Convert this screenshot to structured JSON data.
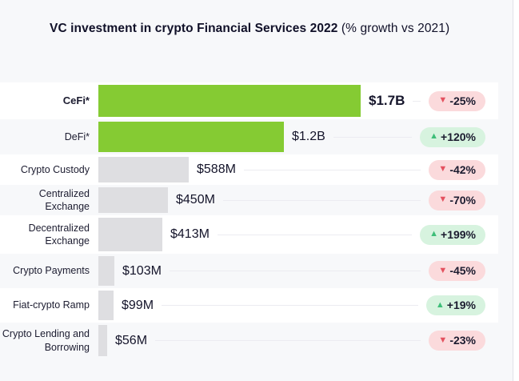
{
  "title": {
    "main": "VC investment in crypto Financial Services 2022",
    "suffix": "(% growth vs 2021)"
  },
  "colors": {
    "page_background": "#f7f8fa",
    "row_alt_background": "#ffffff",
    "bar_green": "#85cb33",
    "bar_gray": "#dedee1",
    "badge_negative_bg": "#fbdadc",
    "badge_positive_bg": "#d7f3df",
    "triangle_negative": "#e4515f",
    "triangle_positive": "#3dbe78",
    "text_dark": "#14142a"
  },
  "chart_data": {
    "type": "bar",
    "orientation": "horizontal",
    "title": "VC investment in crypto Financial Services 2022",
    "subtitle": "(% growth vs 2021)",
    "grid": false,
    "legend": false,
    "categories": [
      "CeFi*",
      "DeFi*",
      "Crypto Custody",
      "Centralized Exchange",
      "Decentralized Exchange",
      "Crypto Payments",
      "Fiat-crypto Ramp",
      "Crypto Lending and Borrowing"
    ],
    "values_usd_millions": [
      1700,
      1200,
      588,
      450,
      413,
      103,
      99,
      56
    ],
    "value_labels": [
      "$1.7B",
      "$1.2B",
      "$588M",
      "$450M",
      "$413M",
      "$103M",
      "$99M",
      "$56M"
    ],
    "growth_pct_vs_2021": [
      -25,
      120,
      -42,
      -70,
      199,
      -45,
      19,
      -23
    ],
    "growth_labels": [
      "-25%",
      "+120%",
      "-42%",
      "-70%",
      "+199%",
      "-45%",
      "+19%",
      "-23%"
    ],
    "bar_styles": [
      "green",
      "green",
      "gray",
      "gray",
      "gray",
      "gray",
      "gray",
      "gray"
    ],
    "emphasized_category": "CeFi*",
    "triangle_up_icon": "▲",
    "triangle_down_icon": "▼",
    "xlim_usd_millions": [
      0,
      1700
    ]
  }
}
